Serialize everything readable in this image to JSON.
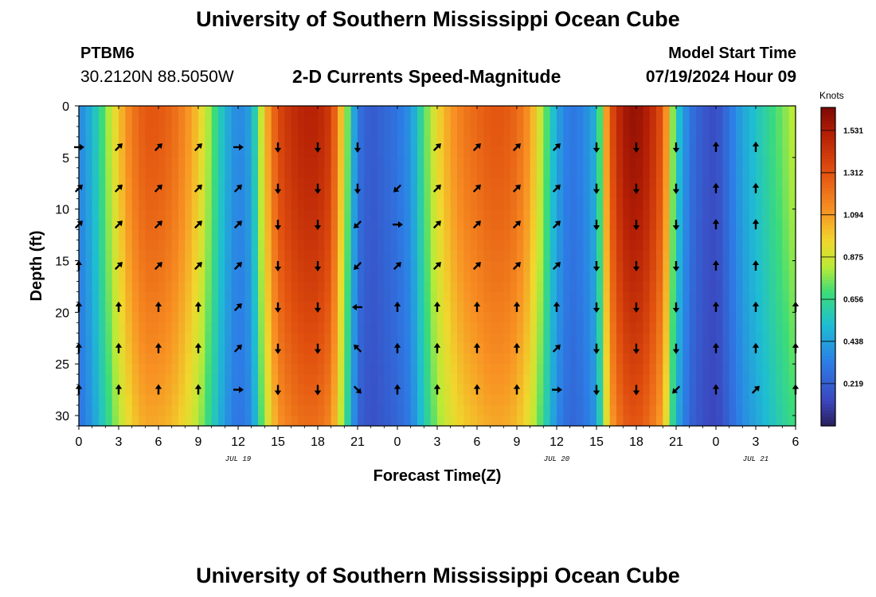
{
  "header": {
    "title": "University of Southern Mississippi Ocean Cube",
    "station_id": "PTBM6",
    "station_coords": "30.2120N  88.5050W",
    "subtitle": "2-D Currents Speed-Magnitude",
    "model_start_label": "Model Start Time",
    "model_start_value": "07/19/2024 Hour 09"
  },
  "footer": {
    "title": "University of Southern Mississippi Ocean Cube"
  },
  "chart_data": {
    "type": "heatmap",
    "title": "2-D Currents Speed-Magnitude",
    "xlabel": "Forecast Time(Z)",
    "ylabel": "Depth (ft)",
    "x_start_hours_from_jul19_00z": 0,
    "x_end_hours_from_jul19_00z": 54,
    "xlim": [
      0,
      54
    ],
    "ylim": [
      0,
      31
    ],
    "y_inverted": true,
    "x_tick_hours": [
      0,
      3,
      6,
      9,
      12,
      15,
      18,
      21,
      24,
      27,
      30,
      33,
      36,
      39,
      42,
      45,
      48,
      51,
      54
    ],
    "x_tick_labels": [
      "0",
      "3",
      "6",
      "9",
      "12",
      "15",
      "18",
      "21",
      "0",
      "3",
      "6",
      "9",
      "12",
      "15",
      "18",
      "21",
      "0",
      "3",
      "6"
    ],
    "date_labels": [
      {
        "hour": 12,
        "text": "JUL 19"
      },
      {
        "hour": 36,
        "text": "JUL 20"
      },
      {
        "hour": 51,
        "text": "JUL 21"
      }
    ],
    "y_ticks": [
      0,
      5,
      10,
      15,
      20,
      25,
      30
    ],
    "colorbar": {
      "unit": "Knots",
      "min": 0.0,
      "max": 1.65,
      "tick_values": [
        0.219,
        0.438,
        0.656,
        0.875,
        1.094,
        1.312,
        1.531
      ],
      "tick_labels": [
        "0.219",
        "0.438",
        "0.656",
        "0.875",
        "1.094",
        "1.312",
        "1.531"
      ]
    },
    "speed_bands": [
      {
        "t": 0,
        "s": 0.35
      },
      {
        "t": 1,
        "s": 0.5
      },
      {
        "t": 2,
        "s": 0.75
      },
      {
        "t": 3,
        "s": 1.0
      },
      {
        "t": 4,
        "s": 1.2
      },
      {
        "t": 5,
        "s": 1.3
      },
      {
        "t": 6,
        "s": 1.3
      },
      {
        "t": 7,
        "s": 1.25
      },
      {
        "t": 8,
        "s": 1.15
      },
      {
        "t": 9,
        "s": 1.0
      },
      {
        "t": 10,
        "s": 0.75
      },
      {
        "t": 11,
        "s": 0.5
      },
      {
        "t": 12,
        "s": 0.35
      },
      {
        "t": 13,
        "s": 0.45
      },
      {
        "t": 14,
        "s": 1.0
      },
      {
        "t": 15,
        "s": 1.35
      },
      {
        "t": 16,
        "s": 1.45
      },
      {
        "t": 17,
        "s": 1.5
      },
      {
        "t": 18,
        "s": 1.5
      },
      {
        "t": 19,
        "s": 1.4
      },
      {
        "t": 20,
        "s": 0.9
      },
      {
        "t": 21,
        "s": 0.3
      },
      {
        "t": 22,
        "s": 0.2
      },
      {
        "t": 23,
        "s": 0.25
      },
      {
        "t": 24,
        "s": 0.3
      },
      {
        "t": 25,
        "s": 0.4
      },
      {
        "t": 26,
        "s": 0.7
      },
      {
        "t": 27,
        "s": 0.95
      },
      {
        "t": 28,
        "s": 1.1
      },
      {
        "t": 29,
        "s": 1.2
      },
      {
        "t": 30,
        "s": 1.25
      },
      {
        "t": 31,
        "s": 1.3
      },
      {
        "t": 32,
        "s": 1.3
      },
      {
        "t": 33,
        "s": 1.25
      },
      {
        "t": 34,
        "s": 1.1
      },
      {
        "t": 35,
        "s": 0.8
      },
      {
        "t": 36,
        "s": 0.45
      },
      {
        "t": 37,
        "s": 0.3
      },
      {
        "t": 38,
        "s": 0.35
      },
      {
        "t": 39,
        "s": 0.5
      },
      {
        "t": 40,
        "s": 1.3
      },
      {
        "t": 41,
        "s": 1.55
      },
      {
        "t": 42,
        "s": 1.6
      },
      {
        "t": 43,
        "s": 1.5
      },
      {
        "t": 44,
        "s": 1.3
      },
      {
        "t": 45,
        "s": 0.6
      },
      {
        "t": 46,
        "s": 0.3
      },
      {
        "t": 47,
        "s": 0.2
      },
      {
        "t": 48,
        "s": 0.15
      },
      {
        "t": 49,
        "s": 0.3
      },
      {
        "t": 50,
        "s": 0.45
      },
      {
        "t": 51,
        "s": 0.55
      },
      {
        "t": 52,
        "s": 0.65
      },
      {
        "t": 53,
        "s": 0.75
      },
      {
        "t": 54,
        "s": 0.85
      }
    ],
    "vector_hours": [
      0,
      3,
      6,
      9,
      12,
      15,
      18,
      21,
      24,
      27,
      30,
      33,
      36,
      39,
      42,
      45,
      48,
      51,
      54
    ],
    "vector_depths": [
      4,
      8,
      11.5,
      15.5,
      19.5,
      23.5,
      27.5
    ],
    "vector_directions": [
      [
        "E",
        "NE",
        "NE",
        "NE",
        "E",
        "S",
        "S",
        "S",
        "",
        "NE",
        "NE",
        "NE",
        "NE",
        "S",
        "S",
        "S",
        "N",
        "N",
        ""
      ],
      [
        "NE",
        "NE",
        "NE",
        "NE",
        "NE",
        "S",
        "S",
        "S",
        "SW",
        "NE",
        "NE",
        "NE",
        "NE",
        "S",
        "S",
        "S",
        "N",
        "N",
        ""
      ],
      [
        "NE",
        "NE",
        "NE",
        "NE",
        "NE",
        "S",
        "S",
        "SW",
        "E",
        "NE",
        "NE",
        "NE",
        "NE",
        "S",
        "S",
        "S",
        "N",
        "N",
        ""
      ],
      [
        "N",
        "NE",
        "NE",
        "NE",
        "NE",
        "S",
        "S",
        "SW",
        "NE",
        "NE",
        "NE",
        "NE",
        "NE",
        "S",
        "S",
        "S",
        "N",
        "N",
        ""
      ],
      [
        "N",
        "N",
        "N",
        "N",
        "NE",
        "S",
        "S",
        "W",
        "N",
        "N",
        "N",
        "N",
        "N",
        "S",
        "S",
        "S",
        "N",
        "N",
        "N"
      ],
      [
        "N",
        "N",
        "N",
        "N",
        "NE",
        "S",
        "S",
        "NW",
        "N",
        "N",
        "N",
        "N",
        "NE",
        "S",
        "S",
        "S",
        "N",
        "N",
        "N"
      ],
      [
        "N",
        "N",
        "N",
        "N",
        "E",
        "S",
        "S",
        "SE",
        "N",
        "N",
        "N",
        "N",
        "E",
        "S",
        "S",
        "SW",
        "N",
        "NE",
        "N"
      ]
    ]
  }
}
